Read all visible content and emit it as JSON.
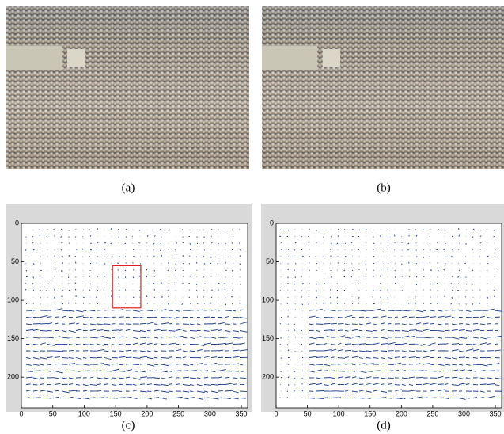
{
  "photos": [
    {
      "caption": "(a)"
    },
    {
      "caption": "(b)"
    }
  ],
  "chart_data": [
    {
      "type": "quiver",
      "caption": "(c)",
      "xlim": [
        0,
        360
      ],
      "ylim": [
        0,
        240
      ],
      "xticks": [
        0,
        50,
        100,
        150,
        200,
        250,
        300,
        350
      ],
      "yticks": [
        0,
        50,
        100,
        150,
        200
      ],
      "y_reversed": true,
      "color": "#1a3c8c",
      "highlight_box": {
        "x": [
          145,
          190
        ],
        "y": [
          55,
          110
        ],
        "color": "#e02020"
      }
    },
    {
      "type": "quiver",
      "caption": "(d)",
      "xlim": [
        0,
        360
      ],
      "ylim": [
        0,
        240
      ],
      "xticks": [
        0,
        50,
        100,
        150,
        200,
        250,
        300,
        350
      ],
      "yticks": [
        0,
        50,
        100,
        150,
        200
      ],
      "y_reversed": true,
      "color": "#1a3c8c"
    }
  ]
}
